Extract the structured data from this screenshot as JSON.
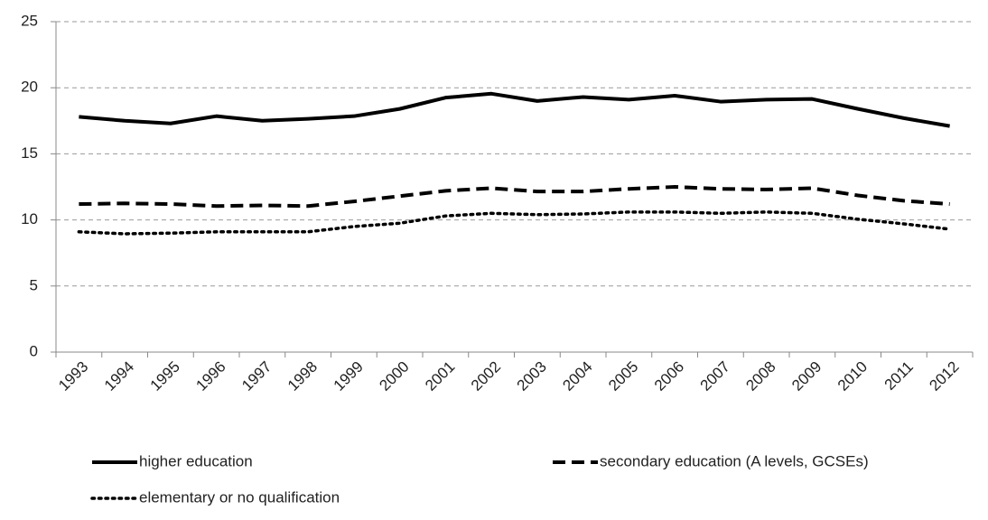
{
  "chart_data": {
    "type": "line",
    "categories": [
      "1993",
      "1994",
      "1995",
      "1996",
      "1997",
      "1998",
      "1999",
      "2000",
      "2001",
      "2002",
      "2003",
      "2004",
      "2005",
      "2006",
      "2007",
      "2008",
      "2009",
      "2010",
      "2011",
      "2012"
    ],
    "series": [
      {
        "name": "higher education",
        "color": "#000000",
        "dash": "solid",
        "values": [
          17.8,
          17.5,
          17.3,
          17.85,
          17.5,
          17.65,
          17.85,
          18.4,
          19.25,
          19.55,
          19.0,
          19.3,
          19.1,
          19.4,
          18.95,
          19.1,
          19.15,
          18.4,
          17.7,
          17.1
        ]
      },
      {
        "name": "secondary education (A levels, GCSEs)",
        "color": "#000000",
        "dash": "dashed",
        "values": [
          11.2,
          11.25,
          11.2,
          11.05,
          11.1,
          11.05,
          11.4,
          11.8,
          12.2,
          12.4,
          12.15,
          12.15,
          12.35,
          12.5,
          12.35,
          12.3,
          12.4,
          11.85,
          11.45,
          11.2
        ]
      },
      {
        "name": "elementary or no qualification",
        "color": "#000000",
        "dash": "dotted",
        "values": [
          9.1,
          8.95,
          9.0,
          9.1,
          9.1,
          9.1,
          9.5,
          9.75,
          10.3,
          10.5,
          10.4,
          10.45,
          10.6,
          10.6,
          10.5,
          10.6,
          10.5,
          10.05,
          9.7,
          9.3
        ]
      }
    ],
    "ylim": [
      0,
      25
    ],
    "yticks": [
      0,
      5,
      10,
      15,
      20,
      25
    ],
    "grid": true,
    "legend": "bottom"
  }
}
